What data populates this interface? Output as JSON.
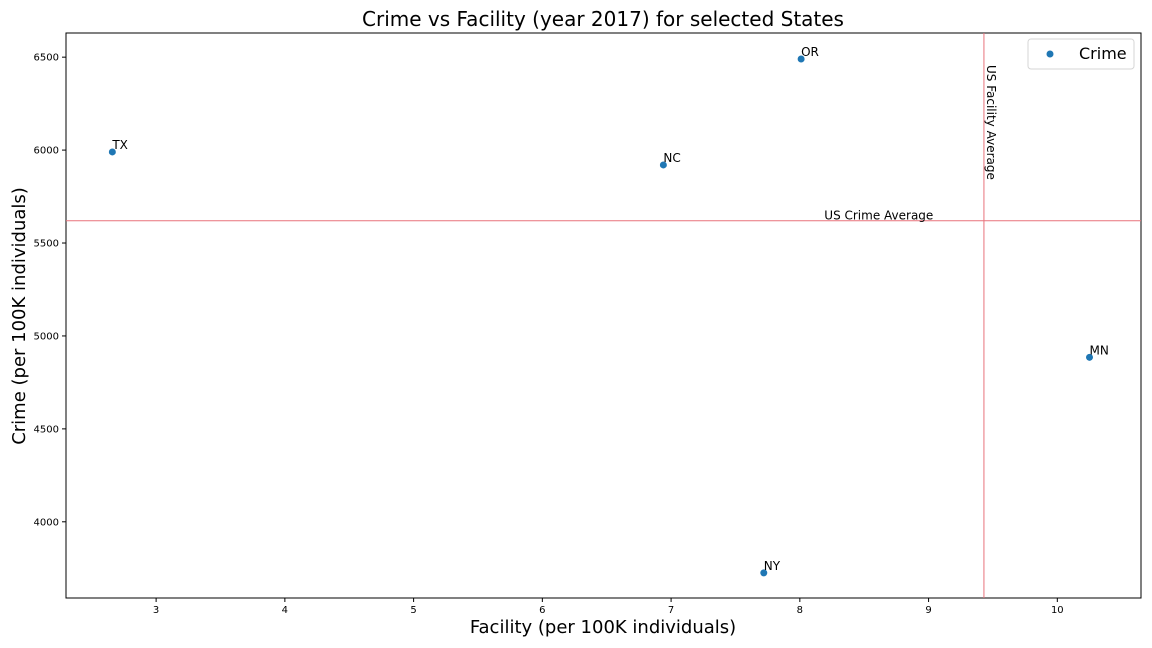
{
  "chart_data": {
    "type": "scatter",
    "title": "Crime vs Facility (year 2017) for selected States",
    "xlabel": "Facility (per 100K individuals)",
    "ylabel": "Crime (per 100K individuals)",
    "xlim": [
      2.3,
      10.65
    ],
    "ylim": [
      3590,
      6630
    ],
    "xticks": [
      3,
      4,
      5,
      6,
      7,
      8,
      9,
      10
    ],
    "yticks": [
      4000,
      4500,
      5000,
      5500,
      6000,
      6500
    ],
    "grid": false,
    "legend": {
      "position": "top-right",
      "entries": [
        "Crime"
      ]
    },
    "series": [
      {
        "name": "Crime",
        "color": "#1f77b4",
        "points": [
          {
            "label": "TX",
            "x": 2.66,
            "y": 5990
          },
          {
            "label": "NC",
            "x": 6.94,
            "y": 5920
          },
          {
            "label": "OR",
            "x": 8.01,
            "y": 6490
          },
          {
            "label": "NY",
            "x": 7.72,
            "y": 3725
          },
          {
            "label": "MN",
            "x": 10.25,
            "y": 4885
          }
        ]
      }
    ],
    "reference_lines": {
      "us_crime_average": {
        "label": "US Crime Average",
        "y": 5620,
        "color": "#e8727b"
      },
      "us_facility_average": {
        "label": "US Facility Average",
        "x": 9.43,
        "color": "#e8727b"
      }
    }
  }
}
